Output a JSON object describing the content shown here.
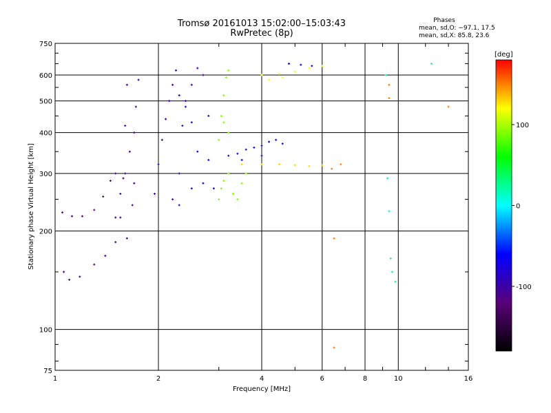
{
  "header": {
    "title_line1": "Tromsø 20161013 15:02:00–15:03:43",
    "title_line2": "RwPretec (8p)",
    "stats_title": "Phases",
    "stats_line1": "mean, sd,O: −97.1, 17.5",
    "stats_line2": "mean, sd,X:  85.8, 23.6"
  },
  "colorbar": {
    "label": "[deg]",
    "range": [
      -180,
      180
    ],
    "ticks": [
      "100",
      "0",
      "-100"
    ],
    "stops": [
      "#000000",
      "#5a007a",
      "#0000ff",
      "#00ffff",
      "#00ff00",
      "#ffff00",
      "#ff0000"
    ]
  },
  "chart_data": {
    "type": "scatter",
    "xlabel": "Frequency [MHz]",
    "ylabel": "Stationary phase Virtual Height [km]",
    "xscale": "log",
    "yscale": "log",
    "xlim": [
      1,
      16
    ],
    "ylim": [
      75,
      750
    ],
    "grid": true,
    "xticks": [
      "1",
      "2",
      "4",
      "6",
      "8",
      "10",
      "16"
    ],
    "yticks": [
      "75",
      "100",
      "200",
      "300",
      "400",
      "500",
      "600",
      "750"
    ],
    "series": [
      {
        "points": [
          [
            1.05,
            228
          ],
          [
            1.12,
            222
          ],
          [
            1.2,
            222
          ],
          [
            1.3,
            232
          ],
          [
            1.38,
            255
          ],
          [
            1.45,
            285
          ],
          [
            1.5,
            300
          ],
          [
            1.06,
            150
          ],
          [
            1.1,
            142
          ],
          [
            1.18,
            145
          ],
          [
            1.3,
            158
          ],
          [
            1.4,
            168
          ],
          [
            1.5,
            185
          ],
          [
            1.55,
            220
          ],
          [
            1.58,
            290
          ],
          [
            1.6,
            420
          ],
          [
            1.62,
            560
          ]
        ],
        "phase": -115
      },
      {
        "points": [
          [
            1.5,
            220
          ],
          [
            1.55,
            260
          ],
          [
            1.6,
            300
          ],
          [
            1.65,
            350
          ],
          [
            1.7,
            400
          ],
          [
            1.72,
            480
          ],
          [
            1.75,
            580
          ],
          [
            1.62,
            190
          ],
          [
            1.68,
            240
          ],
          [
            1.7,
            280
          ]
        ],
        "phase": -105
      },
      {
        "points": [
          [
            1.95,
            260
          ],
          [
            2.0,
            320
          ],
          [
            2.05,
            380
          ],
          [
            2.1,
            440
          ],
          [
            2.15,
            500
          ],
          [
            2.2,
            560
          ],
          [
            2.25,
            620
          ],
          [
            2.3,
            300
          ],
          [
            2.35,
            420
          ],
          [
            2.4,
            500
          ],
          [
            2.5,
            560
          ],
          [
            2.6,
            630
          ],
          [
            2.7,
            600
          ],
          [
            2.8,
            450
          ],
          [
            2.2,
            250
          ],
          [
            2.3,
            240
          ]
        ],
        "phase": -100
      },
      {
        "points": [
          [
            2.3,
            520
          ],
          [
            2.4,
            480
          ],
          [
            2.5,
            430
          ],
          [
            2.6,
            350
          ],
          [
            2.7,
            280
          ],
          [
            2.8,
            330
          ],
          [
            2.9,
            270
          ],
          [
            2.5,
            270
          ]
        ],
        "phase": -70
      },
      {
        "points": [
          [
            3.0,
            250
          ],
          [
            3.05,
            270
          ],
          [
            3.1,
            285
          ],
          [
            3.2,
            300
          ],
          [
            3.3,
            260
          ],
          [
            3.4,
            250
          ],
          [
            3.5,
            280
          ],
          [
            3.6,
            300
          ],
          [
            3.0,
            380
          ],
          [
            3.05,
            450
          ],
          [
            3.1,
            520
          ],
          [
            3.15,
            590
          ],
          [
            3.2,
            620
          ],
          [
            3.1,
            430
          ],
          [
            3.2,
            400
          ]
        ],
        "phase": 90
      },
      {
        "points": [
          [
            3.2,
            340
          ],
          [
            3.4,
            345
          ],
          [
            3.6,
            355
          ],
          [
            3.8,
            360
          ],
          [
            4.0,
            365
          ],
          [
            4.2,
            375
          ],
          [
            4.4,
            380
          ],
          [
            4.6,
            370
          ],
          [
            3.5,
            330
          ],
          [
            4.0,
            340
          ]
        ],
        "phase": -75
      },
      {
        "points": [
          [
            3.5,
            320
          ],
          [
            4.0,
            320
          ],
          [
            4.5,
            320
          ],
          [
            5.0,
            318
          ],
          [
            5.5,
            316
          ],
          [
            6.0,
            318
          ]
        ],
        "phase": 130
      },
      {
        "points": [
          [
            4.0,
            600
          ],
          [
            4.5,
            605
          ],
          [
            5.0,
            615
          ],
          [
            5.5,
            630
          ],
          [
            6.0,
            640
          ],
          [
            4.2,
            580
          ],
          [
            4.6,
            590
          ]
        ],
        "phase": 120
      },
      {
        "points": [
          [
            4.8,
            650
          ],
          [
            5.2,
            645
          ],
          [
            5.6,
            640
          ]
        ],
        "phase": -80
      },
      {
        "points": [
          [
            6.4,
            310
          ],
          [
            6.8,
            320
          ],
          [
            6.5,
            190
          ],
          [
            9.4,
            510
          ],
          [
            9.4,
            560
          ],
          [
            14.0,
            480
          ],
          [
            6.5,
            88
          ]
        ],
        "phase": 150
      },
      {
        "points": [
          [
            9.3,
            290
          ],
          [
            9.4,
            230
          ],
          [
            9.5,
            165
          ],
          [
            9.6,
            150
          ],
          [
            9.8,
            140
          ],
          [
            12.5,
            650
          ],
          [
            9.2,
            600
          ]
        ],
        "phase": 20
      }
    ]
  }
}
